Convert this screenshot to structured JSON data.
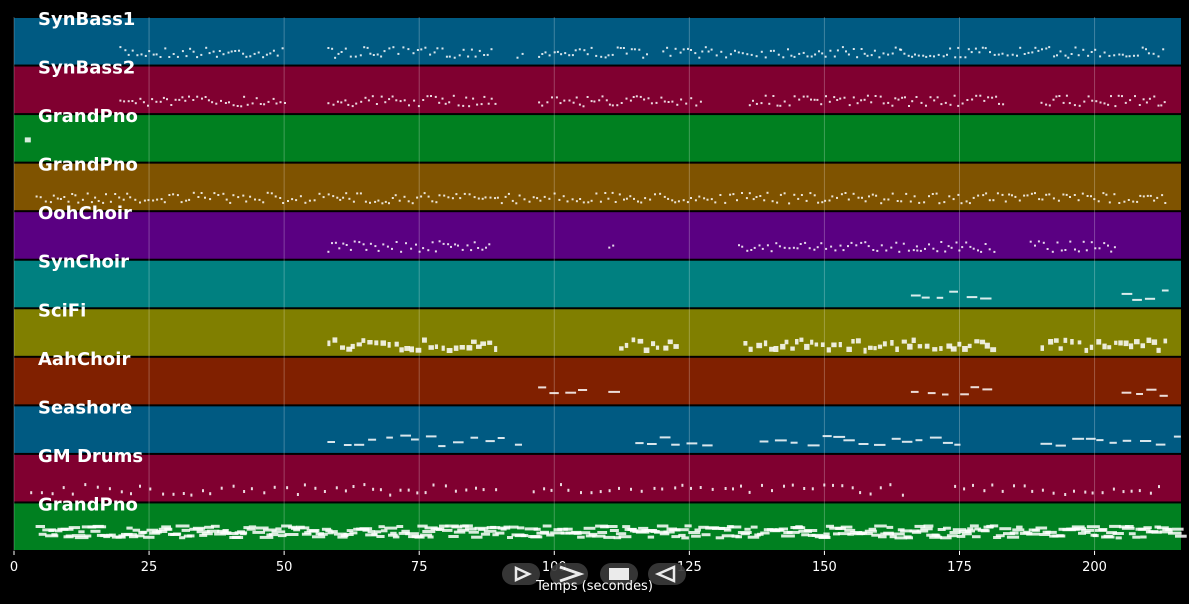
{
  "chart_data": {
    "type": "piano-roll",
    "xlabel": "Temps (secondes)",
    "xlim": [
      0,
      216
    ],
    "xticks": [
      0,
      25,
      50,
      75,
      100,
      125,
      150,
      175,
      200
    ],
    "grid": true,
    "tracks": [
      {
        "name": "SynBass1",
        "color": "#005a82",
        "segments": [
          [
            19.5,
            50
          ],
          [
            58,
            88.5
          ],
          [
            93,
            94
          ],
          [
            97,
            117
          ],
          [
            120,
            164
          ],
          [
            164,
            175
          ],
          [
            175,
            213
          ]
        ],
        "note_style": "dots"
      },
      {
        "name": "SynBass2",
        "color": "#800030",
        "segments": [
          [
            19.5,
            50
          ],
          [
            58,
            89
          ],
          [
            97,
            127
          ],
          [
            136,
            183
          ],
          [
            190,
            213
          ]
        ],
        "note_style": "dots"
      },
      {
        "name": "GrandPno",
        "color": "#008020",
        "segments": [
          [
            2,
            3
          ]
        ],
        "note_style": "blocks"
      },
      {
        "name": "GrandPno",
        "color": "#7f5300",
        "segments": [
          [
            4,
            96
          ],
          [
            96,
            184
          ],
          [
            184,
            213
          ]
        ],
        "note_style": "dots"
      },
      {
        "name": "OohChoir",
        "color": "#5a0082",
        "segments": [
          [
            58,
            88
          ],
          [
            110,
            111
          ],
          [
            134,
            167
          ],
          [
            167,
            182
          ],
          [
            188,
            204
          ]
        ],
        "note_style": "dots"
      },
      {
        "name": "SynChoir",
        "color": "#008080",
        "segments": [
          [
            166,
            181
          ],
          [
            205,
            213
          ]
        ],
        "note_style": "dashes"
      },
      {
        "name": "SciFi",
        "color": "#807f00",
        "segments": [
          [
            58,
            89
          ],
          [
            112,
            123
          ],
          [
            135,
            182
          ],
          [
            190,
            213
          ]
        ],
        "note_style": "blocks"
      },
      {
        "name": "AahChoir",
        "color": "#802000",
        "segments": [
          [
            97,
            106
          ],
          [
            110,
            111
          ],
          [
            166,
            181
          ],
          [
            205,
            213
          ]
        ],
        "note_style": "dashes"
      },
      {
        "name": "Seashore",
        "color": "#005a82",
        "segments": [
          [
            58,
            94
          ],
          [
            115,
            128
          ],
          [
            138,
            175
          ],
          [
            190,
            215
          ]
        ],
        "note_style": "dashes"
      },
      {
        "name": "GM Drums",
        "color": "#800030",
        "segments": [
          [
            3,
            90
          ],
          [
            96,
            166
          ],
          [
            174,
            213
          ]
        ],
        "note_style": "sparse"
      },
      {
        "name": "GrandPno",
        "color": "#008020",
        "segments": [
          [
            4,
            215
          ]
        ],
        "note_style": "dense"
      }
    ]
  },
  "controls": [
    {
      "name": "play-button",
      "icon": "play-outline-icon"
    },
    {
      "name": "fast-forward-button",
      "icon": "chevron-right-icon"
    },
    {
      "name": "stop-button",
      "icon": "stop-icon"
    },
    {
      "name": "rewind-button",
      "icon": "rewind-icon"
    }
  ]
}
